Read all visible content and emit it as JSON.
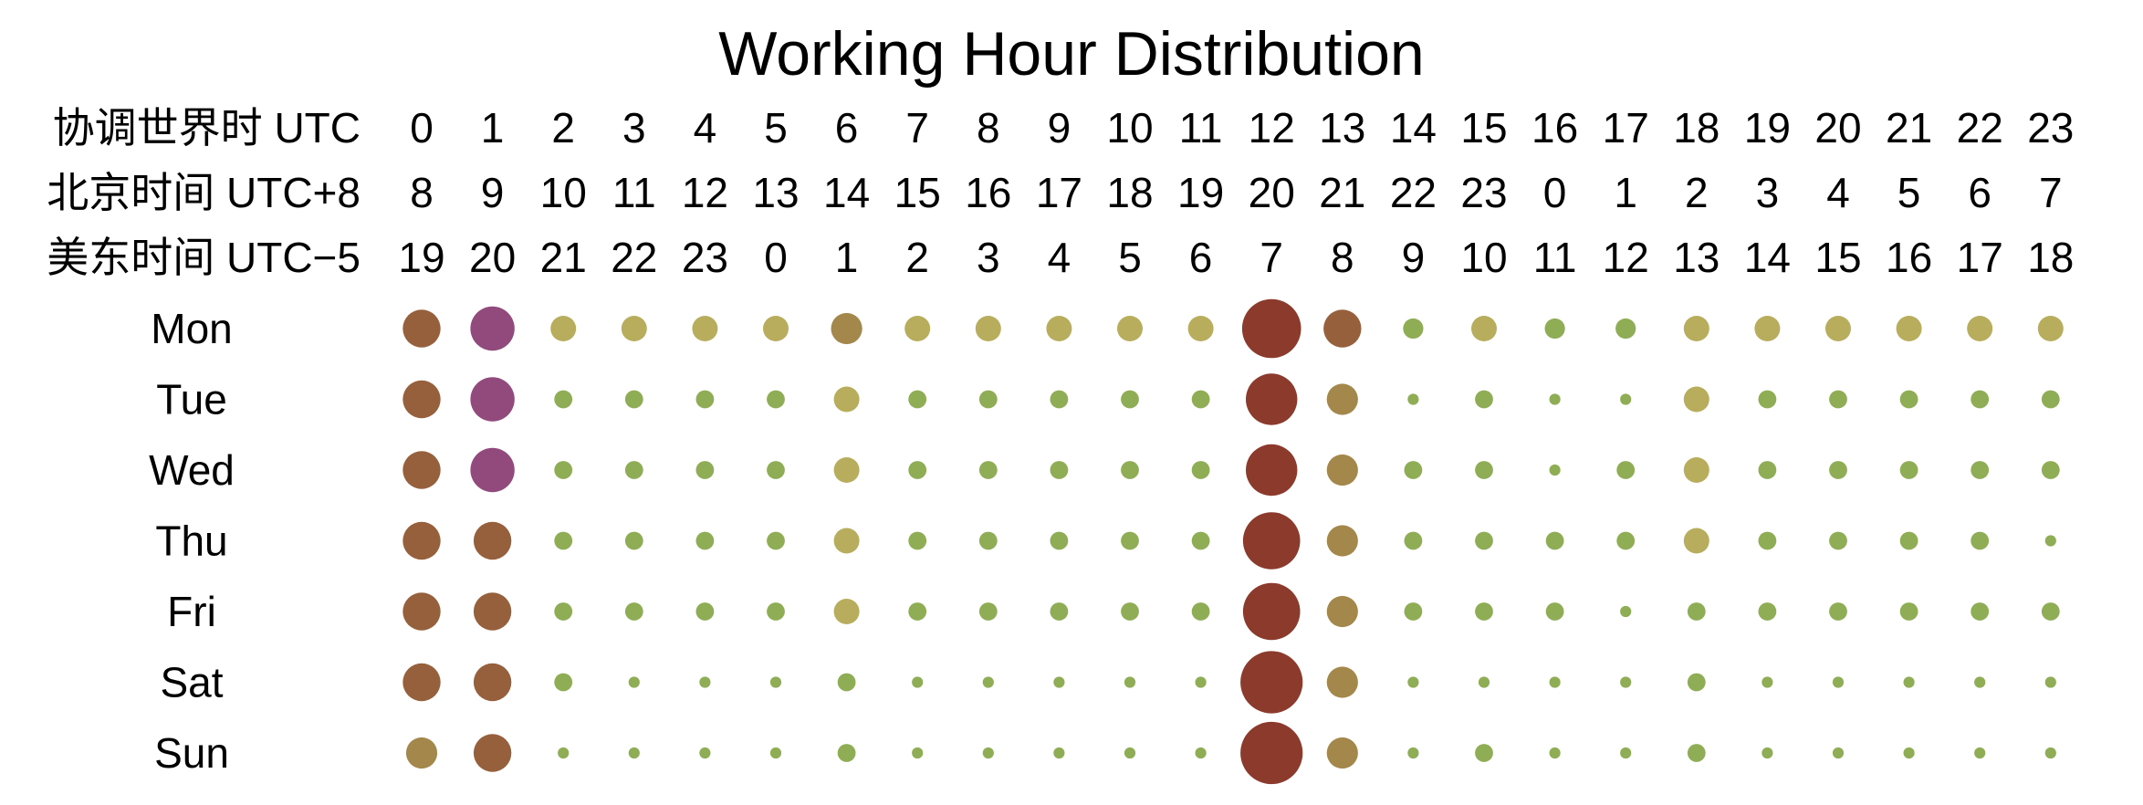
{
  "chart_data": {
    "type": "scatter",
    "title": "Working Hour Distribution",
    "timezone_rows": [
      {
        "label": "协调世界时 UTC",
        "hours": [
          "0",
          "1",
          "2",
          "3",
          "4",
          "5",
          "6",
          "7",
          "8",
          "9",
          "10",
          "11",
          "12",
          "13",
          "14",
          "15",
          "16",
          "17",
          "18",
          "19",
          "20",
          "21",
          "22",
          "23"
        ]
      },
      {
        "label": "北京时间 UTC+8",
        "hours": [
          "8",
          "9",
          "10",
          "11",
          "12",
          "13",
          "14",
          "15",
          "16",
          "17",
          "18",
          "19",
          "20",
          "21",
          "22",
          "23",
          "0",
          "1",
          "2",
          "3",
          "4",
          "5",
          "6",
          "7"
        ]
      },
      {
        "label": "美东时间 UTC−5",
        "hours": [
          "19",
          "20",
          "21",
          "22",
          "23",
          "0",
          "1",
          "2",
          "3",
          "4",
          "5",
          "6",
          "7",
          "8",
          "9",
          "10",
          "11",
          "12",
          "13",
          "14",
          "15",
          "16",
          "17",
          "18"
        ]
      }
    ],
    "days": [
      "Mon",
      "Tue",
      "Wed",
      "Thu",
      "Fri",
      "Sat",
      "Sun"
    ],
    "size_scale": [
      0,
      10
    ],
    "series": [
      {
        "day": "Mon",
        "values": [
          3.5,
          4.8,
          1.6,
          1.6,
          1.6,
          1.6,
          2.4,
          1.6,
          1.6,
          1.6,
          1.6,
          1.6,
          8.5,
          3.5,
          1.0,
          1.6,
          1.0,
          1.0,
          1.6,
          1.6,
          1.6,
          1.6,
          1.6,
          1.6
        ]
      },
      {
        "day": "Tue",
        "values": [
          3.5,
          4.8,
          0.8,
          0.8,
          0.8,
          0.8,
          1.6,
          0.8,
          0.8,
          0.8,
          0.8,
          0.8,
          6.5,
          2.4,
          0.3,
          0.8,
          0.3,
          0.3,
          1.6,
          0.8,
          0.8,
          0.8,
          0.8,
          0.8
        ]
      },
      {
        "day": "Wed",
        "values": [
          3.5,
          4.8,
          0.8,
          0.8,
          0.8,
          0.8,
          1.6,
          0.8,
          0.8,
          0.8,
          0.8,
          0.8,
          6.5,
          2.4,
          0.8,
          0.8,
          0.3,
          0.8,
          1.6,
          0.8,
          0.8,
          0.8,
          0.8,
          0.8
        ]
      },
      {
        "day": "Thu",
        "values": [
          3.5,
          3.5,
          0.8,
          0.8,
          0.8,
          0.8,
          1.6,
          0.8,
          0.8,
          0.8,
          0.8,
          0.8,
          8.0,
          2.4,
          0.8,
          0.8,
          0.8,
          0.8,
          1.6,
          0.8,
          0.8,
          0.8,
          0.8,
          0.3
        ]
      },
      {
        "day": "Fri",
        "values": [
          3.5,
          3.5,
          0.8,
          0.8,
          0.8,
          0.8,
          1.6,
          0.8,
          0.8,
          0.8,
          0.8,
          0.8,
          8.0,
          2.4,
          0.8,
          0.8,
          0.8,
          0.3,
          0.8,
          0.8,
          0.8,
          0.8,
          0.8,
          0.8
        ]
      },
      {
        "day": "Sat",
        "values": [
          3.5,
          3.5,
          0.8,
          0.3,
          0.3,
          0.3,
          0.8,
          0.3,
          0.3,
          0.3,
          0.3,
          0.3,
          9.5,
          2.4,
          0.3,
          0.3,
          0.3,
          0.3,
          0.8,
          0.3,
          0.3,
          0.3,
          0.3,
          0.3
        ]
      },
      {
        "day": "Sun",
        "values": [
          2.4,
          3.5,
          0.3,
          0.3,
          0.3,
          0.3,
          0.8,
          0.3,
          0.3,
          0.3,
          0.3,
          0.3,
          9.5,
          2.4,
          0.3,
          0.8,
          0.3,
          0.3,
          0.8,
          0.3,
          0.3,
          0.3,
          0.3,
          0.3
        ]
      }
    ],
    "grid": false,
    "legend": "none",
    "colors": {
      "low": "#8fad55",
      "medium": "#b8ad5c",
      "high": "#93613b",
      "very_high": "#8b3a2c",
      "outlier": "#924a7d"
    },
    "dot_colors": [
      [
        "high",
        "outlier",
        "medium",
        "medium",
        "medium",
        "medium",
        "high-medium",
        "medium",
        "medium",
        "medium",
        "medium",
        "medium",
        "very_high",
        "high",
        "low",
        "medium",
        "low",
        "low",
        "medium",
        "medium",
        "medium",
        "medium",
        "medium",
        "medium"
      ],
      [
        "high",
        "outlier",
        "low",
        "low",
        "low",
        "low",
        "medium",
        "low",
        "low",
        "low",
        "low",
        "low",
        "very_high",
        "high-medium",
        "low",
        "low",
        "low",
        "low",
        "medium",
        "low",
        "low",
        "low",
        "low",
        "low"
      ],
      [
        "high",
        "outlier",
        "low",
        "low",
        "low",
        "low",
        "medium",
        "low",
        "low",
        "low",
        "low",
        "low",
        "very_high",
        "high-medium",
        "low",
        "low",
        "low",
        "low",
        "medium",
        "low",
        "low",
        "low",
        "low",
        "low"
      ],
      [
        "high",
        "high",
        "low",
        "low",
        "low",
        "low",
        "medium",
        "low",
        "low",
        "low",
        "low",
        "low",
        "very_high",
        "high-medium",
        "low",
        "low",
        "low",
        "low",
        "medium",
        "low",
        "low",
        "low",
        "low",
        "low"
      ],
      [
        "high",
        "high",
        "low",
        "low",
        "low",
        "low",
        "medium",
        "low",
        "low",
        "low",
        "low",
        "low",
        "very_high",
        "high-medium",
        "low",
        "low",
        "low",
        "low",
        "low",
        "low",
        "low",
        "low",
        "low",
        "low"
      ],
      [
        "high",
        "high",
        "low",
        "low",
        "low",
        "low",
        "low",
        "low",
        "low",
        "low",
        "low",
        "low",
        "very_high",
        "high-medium",
        "low",
        "low",
        "low",
        "low",
        "low",
        "low",
        "low",
        "low",
        "low",
        "low"
      ],
      [
        "high-medium",
        "high",
        "low",
        "low",
        "low",
        "low",
        "low",
        "low",
        "low",
        "low",
        "low",
        "low",
        "very_high",
        "high-medium",
        "low",
        "low",
        "low",
        "low",
        "low",
        "low",
        "low",
        "low",
        "low",
        "low"
      ]
    ],
    "color_map": {
      "low": "#8fad55",
      "medium": "#b8ad5c",
      "high-medium": "#a4874b",
      "high": "#97603c",
      "very_high": "#8b3a2c",
      "outlier": "#924a7d"
    }
  }
}
